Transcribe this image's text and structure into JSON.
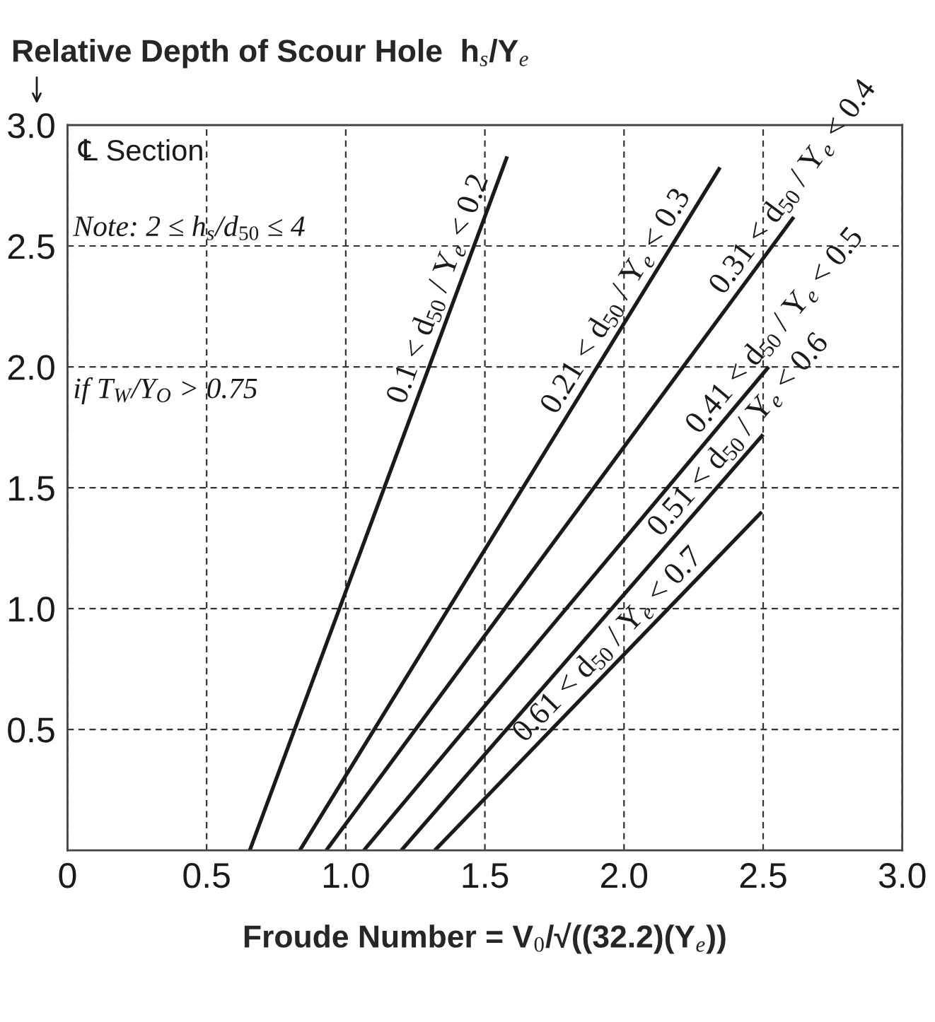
{
  "chart_data": {
    "type": "line",
    "ylabel": "Relative Depth of Scour Hole  h$_{s}$/Y$_{e}$",
    "xlabel": "Froude Number = V$_{0}$/√((32.2)(Y$_{e}$))",
    "annotations": [
      "℄ Section",
      "Note: 2 ≤ h$_{s}$/d$_{50}$ ≤ 4",
      "if T$_{W}$/Y$_{O}$ > 0.75"
    ],
    "series": [
      {
        "name": "0.1 < d$_{50}$ / Y$_{e}$ < 0.2",
        "color": "#1a1a1a",
        "x": [
          0.655,
          1.58
        ],
        "values": [
          0,
          2.87
        ]
      },
      {
        "name": "0.21 < d$_{50}$ / Y$_{e}$ < 0.3",
        "color": "#1a1a1a",
        "x": [
          0.835,
          2.345
        ],
        "values": [
          0,
          2.825
        ]
      },
      {
        "name": "0.31 < d$_{50}$ / Y$_{e}$ < 0.4",
        "color": "#1a1a1a",
        "x": [
          0.93,
          2.61
        ],
        "values": [
          0,
          2.62
        ]
      },
      {
        "name": "0.41 < d$_{50}$ / Y$_{e}$ < 0.5",
        "color": "#1a1a1a",
        "x": [
          1.065,
          2.52
        ],
        "values": [
          0,
          2.0
        ]
      },
      {
        "name": "0.51 < d$_{50}$ / Y$_{e}$ < 0.6",
        "color": "#1a1a1a",
        "x": [
          1.2,
          2.5
        ],
        "values": [
          0,
          1.72
        ]
      },
      {
        "name": "0.61 < d$_{50}$ / Y$_{e}$ < 0.7",
        "color": "#1a1a1a",
        "x": [
          1.32,
          2.495
        ],
        "values": [
          0,
          1.4
        ]
      }
    ],
    "xlim": [
      0,
      3
    ],
    "ylim": [
      0,
      3
    ],
    "xticks": [
      0,
      0.5,
      {
        "value": 1,
        "label": "1.0"
      },
      1.5,
      {
        "value": 2,
        "label": "2.0"
      },
      2.5,
      {
        "value": 3,
        "label": "3.0"
      }
    ],
    "yticks": [
      0.5,
      {
        "value": 1,
        "label": "1.0"
      },
      1.5,
      {
        "value": 2,
        "label": "2.0"
      },
      2.5,
      {
        "value": 3,
        "label": "3.0"
      }
    ],
    "grid": true
  }
}
